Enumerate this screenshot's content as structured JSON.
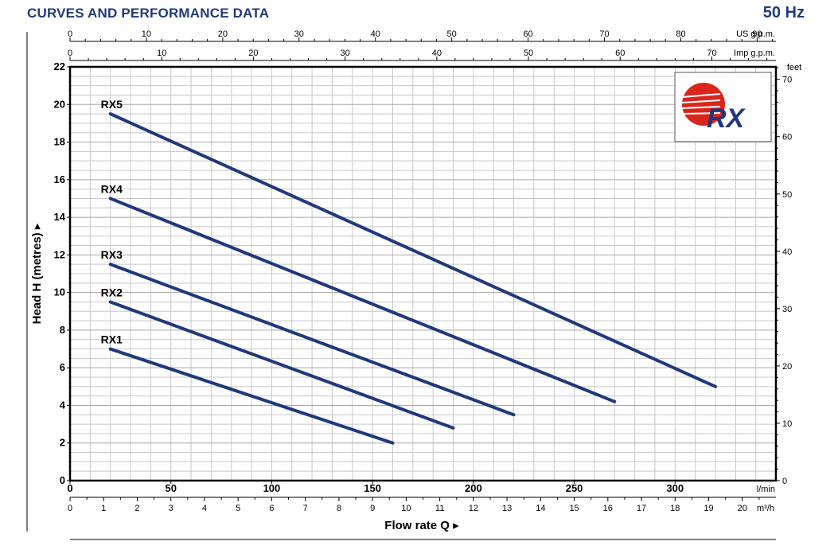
{
  "header": {
    "title": "CURVES AND PERFORMANCE DATA",
    "frequency": "50 Hz"
  },
  "logo": {
    "text": "RX",
    "colors": {
      "sun": "#d9251c",
      "text": "#1f3a7a"
    }
  },
  "colors": {
    "curve": "#1f3a7a",
    "grid": "#c8c8c8",
    "axis": "#000000"
  },
  "chart_data": {
    "type": "line",
    "xlabel": "Flow rate Q",
    "ylabel": "Head H (metres)",
    "x_unit": "l/min",
    "xlim": [
      0,
      350
    ],
    "ylim": [
      0,
      22
    ],
    "grid": true,
    "x_ticks": [
      "0",
      "50",
      "100",
      "150",
      "200",
      "250",
      "300"
    ],
    "y_ticks": [
      "0",
      "2",
      "4",
      "6",
      "8",
      "10",
      "12",
      "14",
      "16",
      "18",
      "20",
      "22"
    ],
    "series": [
      {
        "name": "RX1",
        "x": [
          20,
          160
        ],
        "y": [
          7.0,
          2.0
        ]
      },
      {
        "name": "RX2",
        "x": [
          20,
          190
        ],
        "y": [
          9.5,
          2.8
        ]
      },
      {
        "name": "RX3",
        "x": [
          20,
          220
        ],
        "y": [
          11.5,
          3.5
        ]
      },
      {
        "name": "RX4",
        "x": [
          20,
          270
        ],
        "y": [
          15.0,
          4.2
        ]
      },
      {
        "name": "RX5",
        "x": [
          20,
          320
        ],
        "y": [
          19.5,
          5.0
        ]
      }
    ],
    "secondary_axes": {
      "us_gpm": {
        "label": "US g.p.m.",
        "ticks": [
          "0",
          "10",
          "20",
          "30",
          "40",
          "50",
          "60",
          "70",
          "80",
          "90"
        ],
        "max": 92.46
      },
      "imp_gpm": {
        "label": "Imp g.p.m.",
        "ticks": [
          "0",
          "10",
          "20",
          "30",
          "40",
          "50",
          "60",
          "70"
        ],
        "max": 76.99
      },
      "feet": {
        "label": "feet",
        "ticks": [
          "0",
          "10",
          "20",
          "30",
          "40",
          "50",
          "60",
          "70"
        ],
        "max": 72.18
      },
      "m3h": {
        "label": "m³/h",
        "ticks": [
          "0",
          "1",
          "2",
          "3",
          "4",
          "5",
          "6",
          "7",
          "8",
          "9",
          "10",
          "11",
          "12",
          "13",
          "14",
          "15",
          "16",
          "17",
          "18",
          "19",
          "20"
        ],
        "max": 21
      }
    }
  }
}
